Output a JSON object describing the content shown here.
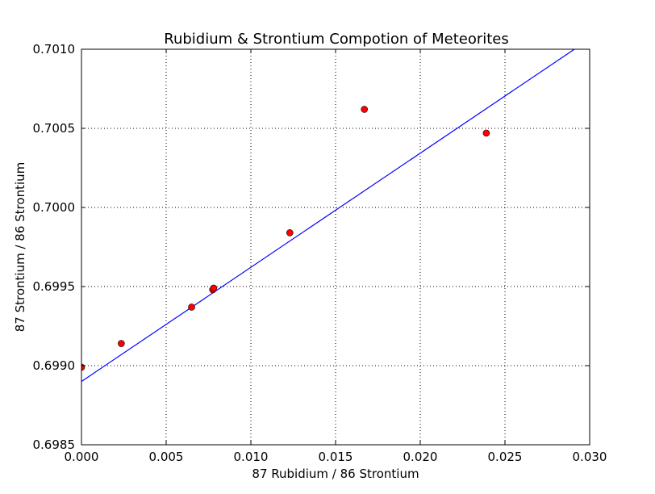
{
  "chart_data": {
    "type": "scatter",
    "title": "Rubidium & Strontium Compotion of Meteorites",
    "xlabel": "87 Rubidium / 86 Strontium",
    "ylabel": "87 Strontium / 86 Strontium",
    "xlim": [
      0.0,
      0.03
    ],
    "ylim": [
      0.6985,
      0.701
    ],
    "x_ticks": [
      0.0,
      0.005,
      0.01,
      0.015,
      0.02,
      0.025,
      0.03
    ],
    "x_tick_labels": [
      "0.000",
      "0.005",
      "0.010",
      "0.015",
      "0.020",
      "0.025",
      "0.030"
    ],
    "y_ticks": [
      0.6985,
      0.699,
      0.6995,
      0.7,
      0.7005,
      0.701
    ],
    "y_tick_labels": [
      "0.6985",
      "0.6990",
      "0.6995",
      "0.7000",
      "0.7005",
      "0.7010"
    ],
    "grid": true,
    "series": [
      {
        "kind": "points",
        "color": "#ff0000",
        "x": [
          0.0,
          0.00235,
          0.0065,
          0.00775,
          0.0078,
          0.0123,
          0.0167,
          0.0239
        ],
        "y": [
          0.69899,
          0.69914,
          0.69937,
          0.69948,
          0.69949,
          0.69984,
          0.70062,
          0.70047
        ]
      },
      {
        "kind": "fit-line",
        "color": "#0000ff",
        "x": [
          0.0,
          0.0291
        ],
        "y": [
          0.6989,
          0.701
        ]
      }
    ]
  }
}
